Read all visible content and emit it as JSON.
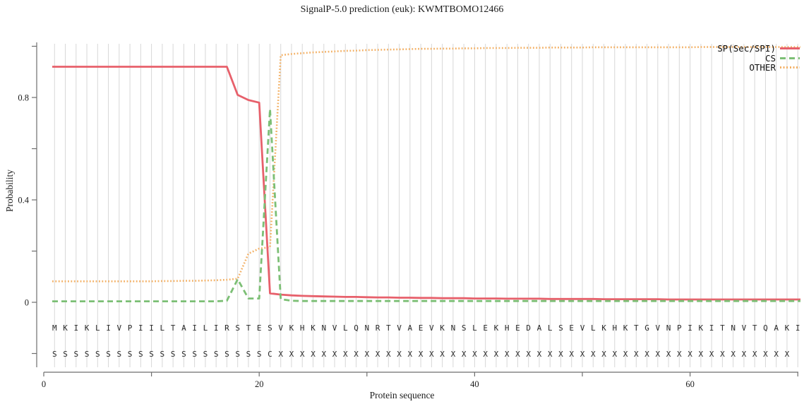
{
  "title": "SignalP-5.0 prediction (euk):  KWMTBOMO12466",
  "y_axis": {
    "label": "Probability",
    "ticks": [
      {
        "v": -0.2,
        "t": ""
      },
      {
        "v": 0,
        "t": "0"
      },
      {
        "v": 0.2,
        "t": ""
      },
      {
        "v": 0.4,
        "t": "0.4"
      },
      {
        "v": 0.6,
        "t": ""
      },
      {
        "v": 0.8,
        "t": "0.8"
      },
      {
        "v": 1.0,
        "t": ""
      }
    ]
  },
  "x_axis": {
    "label": "Protein sequence",
    "ticks": [
      {
        "v": 0,
        "t": "0"
      },
      {
        "v": 10,
        "t": ""
      },
      {
        "v": 20,
        "t": "20"
      },
      {
        "v": 30,
        "t": ""
      },
      {
        "v": 40,
        "t": "40"
      },
      {
        "v": 50,
        "t": ""
      },
      {
        "v": 60,
        "t": "60"
      },
      {
        "v": 70,
        "t": ""
      }
    ]
  },
  "legend": [
    {
      "label": "SP(Sec/SPI)",
      "color": "#e7606b",
      "style": "solid"
    },
    {
      "label": "CS",
      "color": "#7cbf75",
      "style": "dashed"
    },
    {
      "label": "OTHER",
      "color": "#f3b166",
      "style": "dotted"
    }
  ],
  "colors": {
    "sp": "#e7606b",
    "cs": "#7cbf75",
    "other": "#f3b166",
    "grid": "#d7d7d7",
    "axis": "#6e6e6e",
    "text": "#1c1c1c",
    "sequence_text": "#2a2a2a"
  },
  "chart_data": {
    "type": "line",
    "title": "SignalP-5.0 prediction (euk):  KWMTBOMO12466",
    "xlabel": "Protein sequence",
    "ylabel": "Probability",
    "xlim": [
      0,
      70.8
    ],
    "ylim": [
      -0.25,
      1.02
    ],
    "x_start": 1,
    "x_step": 1,
    "grid": "vertical line at every residue position",
    "legend_position": "top-right inside plot",
    "sequence_row": "MKIKLIVPIILTAILIRSTESVKHKNVLQNRTVAEVKNSLEKHEDALSEVLKHKTGVNPIKITNVTQAKI",
    "annotation_row": "SSSSSSSSSSSSSSSSSSSSCXXXXXXXXXXXXXXXXXXXXXXXXXXXXXXXXXXXXXXXXXXXXXXXX",
    "series": [
      {
        "name": "SP(Sec/SPI)",
        "color": "#e7606b",
        "line_style": "solid",
        "values": [
          0.92,
          0.92,
          0.92,
          0.92,
          0.92,
          0.92,
          0.92,
          0.92,
          0.92,
          0.92,
          0.92,
          0.92,
          0.92,
          0.92,
          0.92,
          0.92,
          0.92,
          0.81,
          0.79,
          0.78,
          0.035,
          0.03,
          0.027,
          0.025,
          0.024,
          0.023,
          0.022,
          0.021,
          0.021,
          0.02,
          0.019,
          0.019,
          0.018,
          0.018,
          0.017,
          0.017,
          0.016,
          0.016,
          0.016,
          0.015,
          0.015,
          0.015,
          0.014,
          0.014,
          0.014,
          0.014,
          0.013,
          0.013,
          0.013,
          0.013,
          0.013,
          0.012,
          0.012,
          0.012,
          0.012,
          0.012,
          0.012,
          0.011,
          0.011,
          0.011,
          0.011,
          0.011,
          0.011,
          0.011,
          0.011,
          0.011,
          0.011,
          0.011,
          0.011,
          0.011
        ]
      },
      {
        "name": "CS",
        "color": "#7cbf75",
        "line_style": "dashed",
        "values": [
          0.004,
          0.004,
          0.004,
          0.004,
          0.004,
          0.004,
          0.004,
          0.004,
          0.004,
          0.004,
          0.004,
          0.004,
          0.004,
          0.004,
          0.004,
          0.004,
          0.006,
          0.09,
          0.015,
          0.015,
          0.755,
          0.012,
          0.006,
          0.005,
          0.005,
          0.005,
          0.005,
          0.005,
          0.005,
          0.005,
          0.005,
          0.005,
          0.005,
          0.005,
          0.005,
          0.005,
          0.005,
          0.005,
          0.005,
          0.005,
          0.005,
          0.005,
          0.005,
          0.005,
          0.005,
          0.005,
          0.005,
          0.005,
          0.005,
          0.005,
          0.005,
          0.005,
          0.005,
          0.005,
          0.005,
          0.005,
          0.005,
          0.005,
          0.005,
          0.005,
          0.005,
          0.005,
          0.005,
          0.005,
          0.005,
          0.005,
          0.005,
          0.005,
          0.005,
          0.005
        ]
      },
      {
        "name": "OTHER",
        "color": "#f3b166",
        "line_style": "dotted",
        "values": [
          0.082,
          0.082,
          0.082,
          0.082,
          0.082,
          0.082,
          0.082,
          0.082,
          0.082,
          0.082,
          0.083,
          0.083,
          0.084,
          0.084,
          0.085,
          0.086,
          0.088,
          0.092,
          0.19,
          0.21,
          0.215,
          0.965,
          0.97,
          0.973,
          0.976,
          0.978,
          0.98,
          0.982,
          0.983,
          0.985,
          0.986,
          0.987,
          0.988,
          0.989,
          0.99,
          0.99,
          0.991,
          0.991,
          0.992,
          0.992,
          0.993,
          0.993,
          0.993,
          0.994,
          0.994,
          0.994,
          0.995,
          0.995,
          0.995,
          0.995,
          0.996,
          0.996,
          0.996,
          0.996,
          0.996,
          0.996,
          0.996,
          0.996,
          0.996,
          0.996,
          0.997,
          0.997,
          0.997,
          0.997,
          0.997,
          0.997,
          0.997,
          0.997,
          0.997,
          0.997
        ]
      }
    ]
  }
}
